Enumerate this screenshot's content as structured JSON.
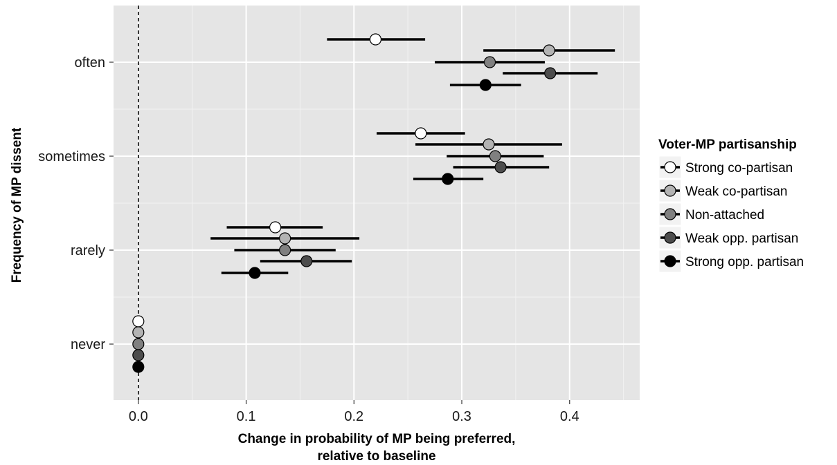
{
  "chart_data": {
    "type": "scatter",
    "subtype": "dot-and-whisker",
    "xlabel_line1": "Change in probability of MP being preferred,",
    "xlabel_line2": "relative to baseline",
    "ylabel": "Frequency of MP dissent",
    "xlim": [
      -0.023,
      0.465
    ],
    "x_ticks": [
      0.0,
      0.1,
      0.2,
      0.3,
      0.4
    ],
    "x_tick_labels": [
      "0.0",
      "0.1",
      "0.2",
      "0.3",
      "0.4"
    ],
    "categories": [
      "often",
      "sometimes",
      "rarely",
      "never"
    ],
    "reference_line": {
      "x": 0,
      "style": "dashed"
    },
    "grid": true,
    "legend": {
      "title": "Voter-MP partisanship",
      "position": "right"
    },
    "series": [
      {
        "name": "Strong co-partisan",
        "color": "#ffffff",
        "points": [
          {
            "category": "often",
            "estimate": 0.22,
            "lower": 0.175,
            "upper": 0.266
          },
          {
            "category": "sometimes",
            "estimate": 0.262,
            "lower": 0.221,
            "upper": 0.303
          },
          {
            "category": "rarely",
            "estimate": 0.127,
            "lower": 0.082,
            "upper": 0.171
          },
          {
            "category": "never",
            "estimate": 0.0
          }
        ]
      },
      {
        "name": "Weak co-partisan",
        "color": "#b3b3b3",
        "points": [
          {
            "category": "often",
            "estimate": 0.381,
            "lower": 0.32,
            "upper": 0.442
          },
          {
            "category": "sometimes",
            "estimate": 0.325,
            "lower": 0.257,
            "upper": 0.393
          },
          {
            "category": "rarely",
            "estimate": 0.136,
            "lower": 0.067,
            "upper": 0.205
          },
          {
            "category": "never",
            "estimate": 0.0
          }
        ]
      },
      {
        "name": "Non-attached",
        "color": "#808080",
        "points": [
          {
            "category": "often",
            "estimate": 0.326,
            "lower": 0.275,
            "upper": 0.377
          },
          {
            "category": "sometimes",
            "estimate": 0.331,
            "lower": 0.286,
            "upper": 0.376
          },
          {
            "category": "rarely",
            "estimate": 0.136,
            "lower": 0.089,
            "upper": 0.183
          },
          {
            "category": "never",
            "estimate": 0.0
          }
        ]
      },
      {
        "name": "Weak opp. partisan",
        "color": "#4d4d4d",
        "points": [
          {
            "category": "often",
            "estimate": 0.382,
            "lower": 0.338,
            "upper": 0.426
          },
          {
            "category": "sometimes",
            "estimate": 0.336,
            "lower": 0.292,
            "upper": 0.381
          },
          {
            "category": "rarely",
            "estimate": 0.156,
            "lower": 0.113,
            "upper": 0.198
          },
          {
            "category": "never",
            "estimate": 0.0
          }
        ]
      },
      {
        "name": "Strong opp. partisan",
        "color": "#000000",
        "points": [
          {
            "category": "often",
            "estimate": 0.322,
            "lower": 0.289,
            "upper": 0.355
          },
          {
            "category": "sometimes",
            "estimate": 0.287,
            "lower": 0.255,
            "upper": 0.32
          },
          {
            "category": "rarely",
            "estimate": 0.108,
            "lower": 0.077,
            "upper": 0.139
          },
          {
            "category": "never",
            "estimate": 0.0
          }
        ]
      }
    ]
  }
}
